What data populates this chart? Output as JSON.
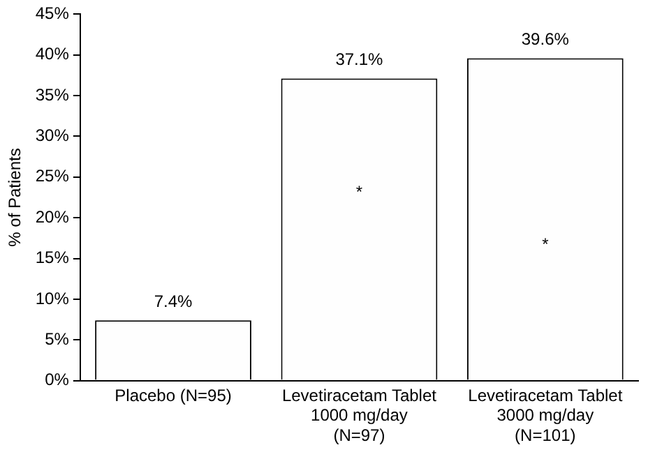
{
  "chart_data": {
    "type": "bar",
    "ylabel": "% of Patients",
    "categories": [
      "Placebo (N=95)",
      "Levetiracetam Tablet\n1000 mg/day\n(N=97)",
      "Levetiracetam Tablet\n3000 mg/day\n(N=101)"
    ],
    "values": [
      7.4,
      37.1,
      39.6
    ],
    "color": "#fefefe",
    "value_labels": [
      "7.4%",
      "37.1%",
      "39.6%"
    ],
    "ylim": [
      0,
      45
    ],
    "yticks": [
      {
        "value": 0,
        "label": "0%"
      },
      {
        "value": 5,
        "label": "5%"
      },
      {
        "value": 10,
        "label": "10%"
      },
      {
        "value": 15,
        "label": "15%"
      },
      {
        "value": 20,
        "label": "20%"
      },
      {
        "value": 25,
        "label": "25%"
      },
      {
        "value": 30,
        "label": "30%"
      },
      {
        "value": 35,
        "label": "35%"
      },
      {
        "value": 40,
        "label": "40%"
      },
      {
        "value": 45,
        "label": "45%"
      }
    ],
    "annotations": [
      "*",
      "*"
    ],
    "grid": false,
    "legend": false
  }
}
